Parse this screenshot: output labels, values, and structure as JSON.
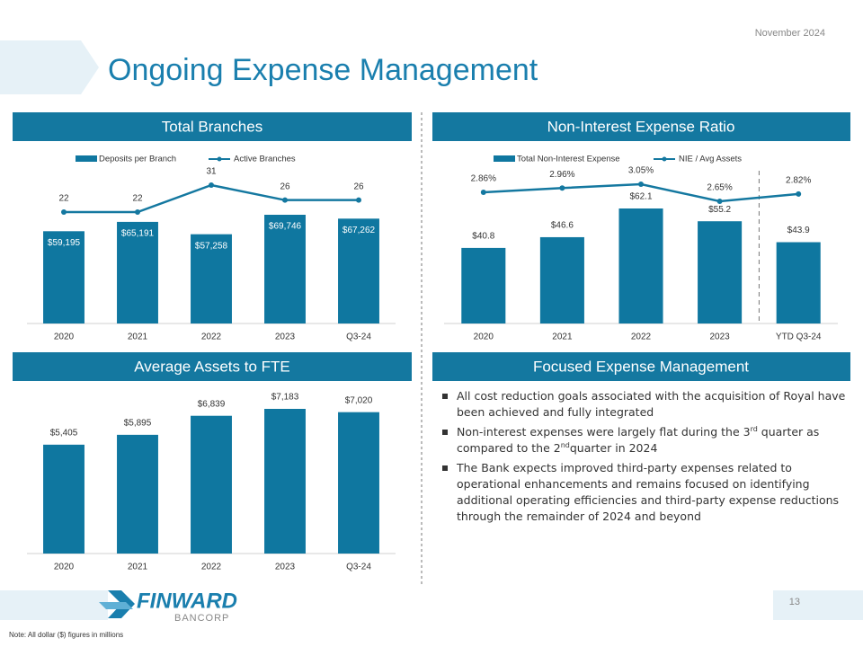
{
  "header": {
    "date": "November 2024",
    "title": "Ongoing Expense Management"
  },
  "chart_data": [
    {
      "type": "combo",
      "title": "Total Branches",
      "categories": [
        "2020",
        "2021",
        "2022",
        "2023",
        "Q3-24"
      ],
      "series": [
        {
          "name": "Deposits per Branch",
          "type": "bar",
          "color": "#0f77a0",
          "values": [
            59195,
            65191,
            57258,
            69746,
            67262
          ],
          "value_labels": [
            "$59,195",
            "$65,191",
            "$57,258",
            "$69,746",
            "$67,262"
          ]
        },
        {
          "name": "Active Branches",
          "type": "line",
          "color": "#1478a0",
          "values": [
            22,
            22,
            31,
            26,
            26
          ]
        }
      ]
    },
    {
      "type": "combo",
      "title": "Non-Interest Expense Ratio",
      "categories": [
        "2020",
        "2021",
        "2022",
        "2023",
        "YTD Q3-24"
      ],
      "series": [
        {
          "name": "Total Non-Interest Expense",
          "type": "bar",
          "color": "#0f77a0",
          "values": [
            40.8,
            46.6,
            62.1,
            55.2,
            43.9
          ],
          "value_labels": [
            "$40.8",
            "$46.6",
            "$62.1",
            "$55.2",
            "$43.9"
          ]
        },
        {
          "name": "NIE / Avg Assets",
          "type": "line",
          "color": "#1478a0",
          "values": [
            2.86,
            2.96,
            3.05,
            2.65,
            2.82
          ],
          "value_labels": [
            "2.86%",
            "2.96%",
            "3.05%",
            "2.65%",
            "2.82%"
          ]
        }
      ]
    },
    {
      "type": "bar",
      "title": "Average Assets to FTE",
      "categories": [
        "2020",
        "2021",
        "2022",
        "2023",
        "Q3-24"
      ],
      "series": [
        {
          "type": "bar",
          "color": "#0f77a0",
          "values": [
            5405,
            5895,
            6839,
            7183,
            7020
          ],
          "value_labels": [
            "$5,405",
            "$5,895",
            "$6,839",
            "$7,183",
            "$7,020"
          ]
        }
      ]
    }
  ],
  "focus": {
    "title": "Focused Expense Management",
    "bullets": [
      [
        "All cost reduction goals associated with the acquisition of Royal have been achieved and fully integrated"
      ],
      [
        "Non-interest expenses were largely flat during the 3",
        "rd",
        " quarter as compared to the 2",
        "nd",
        "quarter in 2024"
      ],
      [
        "The Bank expects improved third-party expenses related to operational enhancements and remains focused on identifying additional operating efficiencies and third-party expense reductions through the remainder of 2024 and beyond"
      ]
    ]
  },
  "footer": {
    "logo_name": "FINWARD",
    "logo_sub": "BANCORP",
    "page": "13",
    "note": "Note: All dollar ($) figures in millions"
  }
}
